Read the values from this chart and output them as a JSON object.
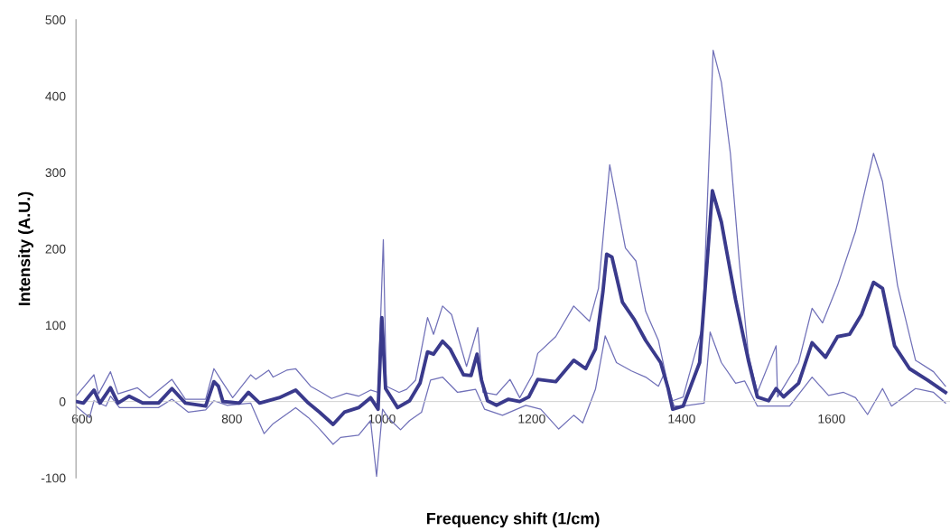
{
  "chart_data": {
    "type": "line",
    "xlabel": "Frequency shift (1/cm)",
    "ylabel": "Intensity (A.U.)",
    "xlim": [
      592,
      1758
    ],
    "ylim": [
      -100,
      500
    ],
    "xticks": [
      600,
      800,
      1000,
      1200,
      1400,
      1600
    ],
    "yticks": [
      -100,
      0,
      100,
      200,
      300,
      400,
      500
    ],
    "grid": false,
    "marker": "none",
    "line_style": "solid",
    "series": [
      {
        "color": "#3a3a8c",
        "x": [
          592,
          602,
          616,
          624,
          638,
          648,
          663,
          681,
          702,
          720,
          738,
          765,
          776,
          782,
          788,
          810,
          822,
          837,
          863,
          885,
          902,
          917,
          935,
          950,
          969,
          985,
          995,
          1000,
          1005,
          1021,
          1037,
          1051,
          1061,
          1069,
          1081,
          1091,
          1109,
          1119,
          1127,
          1133,
          1141,
          1153,
          1169,
          1184,
          1196,
          1208,
          1232,
          1256,
          1272,
          1285,
          1295,
          1300,
          1307,
          1321,
          1337,
          1352,
          1372,
          1382,
          1388,
          1402,
          1424,
          1441,
          1453,
          1460,
          1472,
          1489,
          1501,
          1516,
          1526,
          1536,
          1556,
          1574,
          1592,
          1608,
          1624,
          1640,
          1656,
          1668,
          1684,
          1704,
          1728,
          1752
        ],
        "values": [
          0,
          -2,
          15,
          -2,
          18,
          -2,
          7,
          -2,
          -2,
          17,
          -2,
          -6,
          26,
          20,
          0,
          -2,
          12,
          -2,
          5,
          15,
          -2,
          -14,
          -30,
          -14,
          -8,
          5,
          -10,
          110,
          17,
          -8,
          1,
          24,
          65,
          62,
          79,
          69,
          35,
          34,
          62,
          28,
          1,
          -5,
          3,
          0,
          6,
          29,
          26,
          54,
          43,
          69,
          144,
          193,
          189,
          130,
          107,
          80,
          51,
          17,
          -10,
          -6,
          51,
          276,
          235,
          197,
          133,
          54,
          6,
          1,
          17,
          6,
          24,
          77,
          58,
          85,
          88,
          114,
          156,
          148,
          73,
          43,
          28,
          12
        ]
      },
      {
        "color": "#7070b8",
        "x": [
          592,
          616,
          622,
          638,
          648,
          674,
          690,
          720,
          738,
          765,
          776,
          785,
          801,
          825,
          832,
          849,
          855,
          873,
          885,
          905,
          921,
          933,
          953,
          969,
          985,
          995,
          1002,
          1006,
          1023,
          1033,
          1045,
          1061,
          1069,
          1081,
          1093,
          1113,
          1128,
          1135,
          1153,
          1171,
          1184,
          1201,
          1208,
          1232,
          1256,
          1277,
          1289,
          1304,
          1325,
          1339,
          1352,
          1369,
          1382,
          1388,
          1402,
          1428,
          1442,
          1453,
          1465,
          1477,
          1489,
          1501,
          1526,
          1528,
          1556,
          1574,
          1588,
          1608,
          1632,
          1656,
          1668,
          1688,
          1712,
          1736,
          1752
        ],
        "values": [
          7,
          35,
          10,
          39,
          10,
          18,
          5,
          29,
          3,
          3,
          43,
          29,
          5,
          35,
          29,
          41,
          32,
          41,
          43,
          20,
          11,
          4,
          11,
          7,
          15,
          12,
          212,
          20,
          12,
          16,
          28,
          110,
          88,
          125,
          114,
          46,
          97,
          12,
          9,
          29,
          5,
          35,
          63,
          85,
          125,
          105,
          148,
          310,
          201,
          184,
          118,
          80,
          20,
          1,
          6,
          99,
          460,
          418,
          325,
          182,
          62,
          12,
          73,
          6,
          51,
          122,
          103,
          152,
          223,
          325,
          288,
          152,
          54,
          39,
          20
        ]
      },
      {
        "color": "#7070b8",
        "x": [
          592,
          610,
          616,
          632,
          638,
          650,
          674,
          702,
          720,
          742,
          765,
          776,
          794,
          825,
          843,
          855,
          885,
          902,
          917,
          935,
          945,
          969,
          985,
          993,
          1001,
          1009,
          1025,
          1037,
          1053,
          1065,
          1081,
          1101,
          1125,
          1137,
          1161,
          1192,
          1212,
          1236,
          1256,
          1268,
          1285,
          1298,
          1313,
          1333,
          1352,
          1369,
          1376,
          1390,
          1402,
          1430,
          1438,
          1453,
          1472,
          1484,
          1501,
          1525,
          1544,
          1574,
          1596,
          1616,
          1632,
          1648,
          1668,
          1680,
          1712,
          1736,
          1752
        ],
        "values": [
          -6,
          -21,
          1,
          -6,
          7,
          -8,
          -8,
          -8,
          3,
          -14,
          -11,
          1,
          -5,
          -2,
          -42,
          -29,
          -8,
          -21,
          -36,
          -56,
          -47,
          -44,
          -25,
          -98,
          -10,
          -22,
          -37,
          -25,
          -14,
          28,
          32,
          12,
          16,
          -10,
          -18,
          -5,
          -10,
          -36,
          -18,
          -28,
          16,
          86,
          51,
          40,
          32,
          20,
          35,
          -6,
          -6,
          -2,
          91,
          51,
          24,
          27,
          -6,
          -6,
          -6,
          32,
          8,
          12,
          5,
          -17,
          17,
          -6,
          17,
          12,
          -2
        ]
      }
    ]
  }
}
